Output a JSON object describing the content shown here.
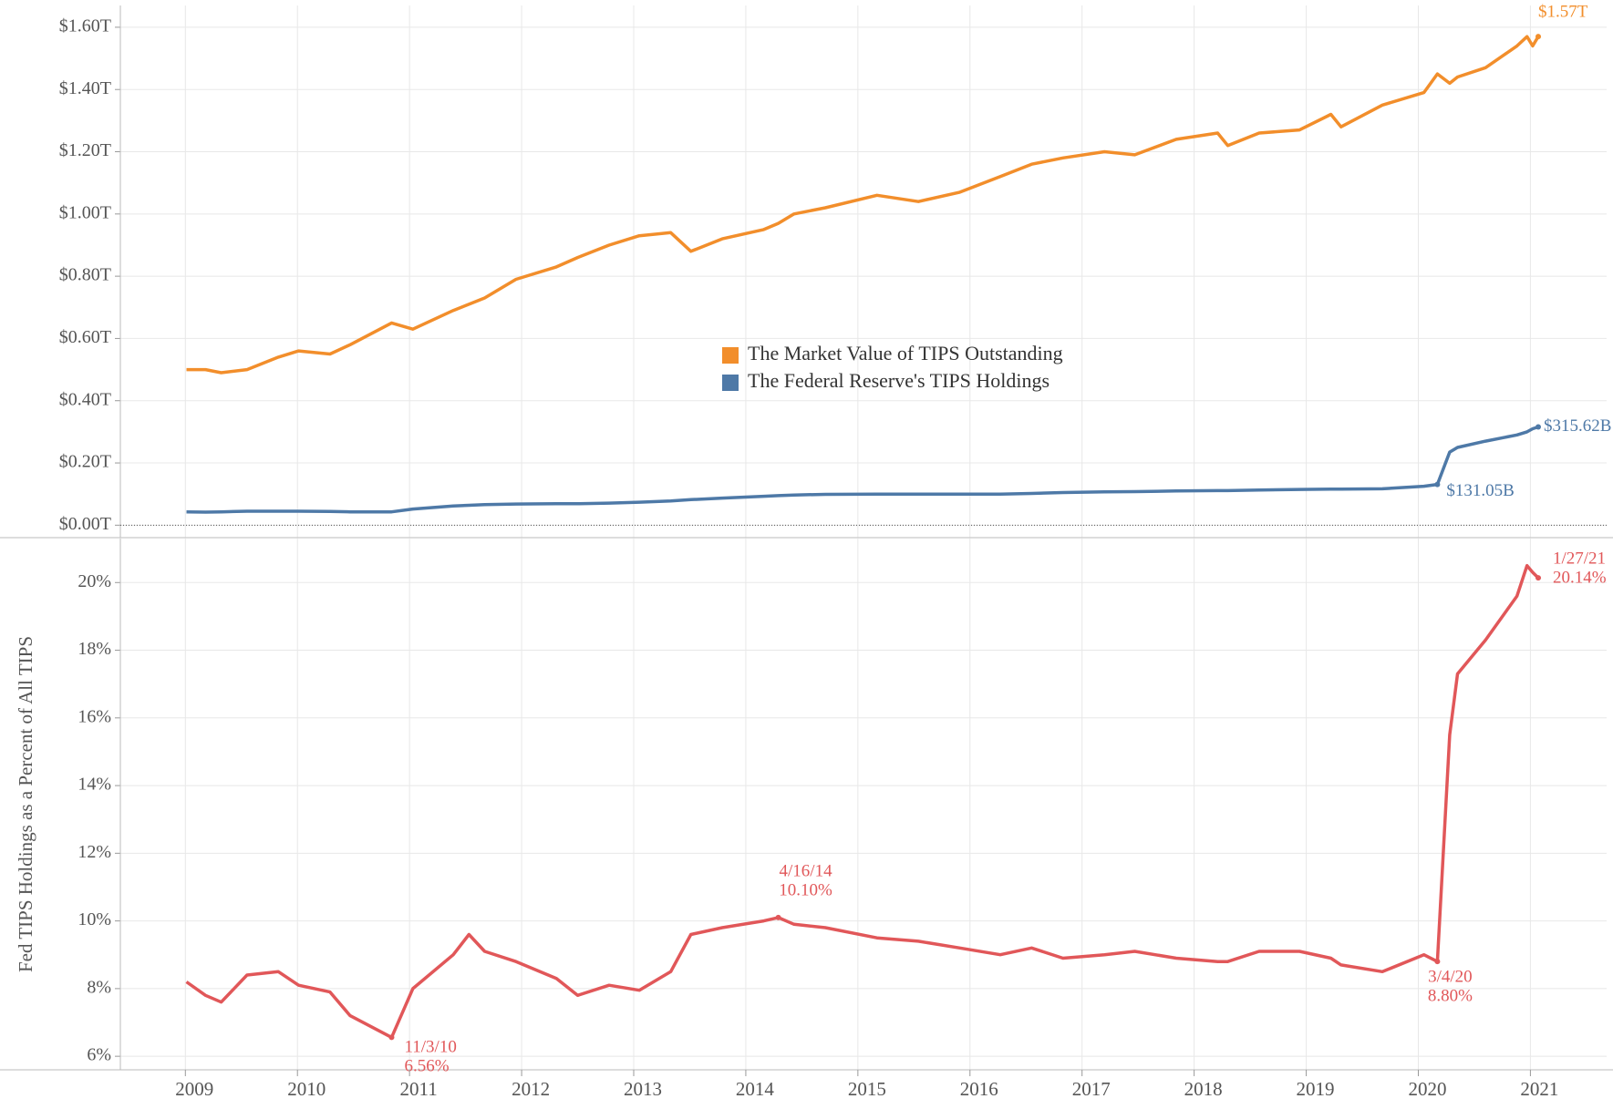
{
  "chart_data": {
    "type": "line",
    "x": [
      2009.01,
      2009.18,
      2009.32,
      2009.55,
      2009.83,
      2010.01,
      2010.29,
      2010.47,
      2010.84,
      2011.03,
      2011.39,
      2011.53,
      2011.67,
      2011.95,
      2012.31,
      2012.5,
      2012.78,
      2013.05,
      2013.33,
      2013.51,
      2013.79,
      2014.16,
      2014.29,
      2014.43,
      2014.71,
      2015.17,
      2015.54,
      2015.91,
      2016.27,
      2016.55,
      2016.83,
      2017.2,
      2017.47,
      2017.84,
      2018.21,
      2018.3,
      2018.58,
      2018.94,
      2019.22,
      2019.31,
      2019.68,
      2020.05,
      2020.17,
      2020.28,
      2020.35,
      2020.6,
      2020.88,
      2020.97,
      2021.02,
      2021.07
    ],
    "xlim": [
      2008.42,
      2021.68
    ],
    "xticks": [
      2009,
      2010,
      2011,
      2012,
      2013,
      2014,
      2015,
      2016,
      2017,
      2018,
      2019,
      2020,
      2021
    ],
    "grid": true,
    "panels": [
      {
        "ylim": [
          -0.04,
          1.67
        ],
        "yticks": [
          {
            "value": 0,
            "label": "$0.00T"
          },
          {
            "value": 0.2,
            "label": "$0.20T"
          },
          {
            "value": 0.4,
            "label": "$0.40T"
          },
          {
            "value": 0.6,
            "label": "$0.60T"
          },
          {
            "value": 0.8,
            "label": "$0.80T"
          },
          {
            "value": 1.0,
            "label": "$1.00T"
          },
          {
            "value": 1.2,
            "label": "$1.20T"
          },
          {
            "value": 1.4,
            "label": "$1.40T"
          },
          {
            "value": 1.6,
            "label": "$1.60T"
          }
        ],
        "legend": "center",
        "series": [
          {
            "name": "The Market Value of TIPS Outstanding",
            "color": "#f28e2b",
            "values": [
              0.5,
              0.5,
              0.49,
              0.5,
              0.54,
              0.56,
              0.55,
              0.58,
              0.65,
              0.63,
              0.69,
              0.71,
              0.73,
              0.79,
              0.83,
              0.86,
              0.9,
              0.93,
              0.94,
              0.88,
              0.92,
              0.95,
              0.97,
              1.0,
              1.02,
              1.06,
              1.04,
              1.07,
              1.12,
              1.16,
              1.18,
              1.2,
              1.19,
              1.24,
              1.26,
              1.22,
              1.26,
              1.27,
              1.32,
              1.28,
              1.35,
              1.39,
              1.45,
              1.42,
              1.44,
              1.47,
              1.54,
              1.57,
              1.54,
              1.57
            ]
          },
          {
            "name": "The Federal Reserve's TIPS Holdings",
            "color": "#4e79a7",
            "values": [
              0.043,
              0.042,
              0.043,
              0.045,
              0.045,
              0.045,
              0.044,
              0.043,
              0.043,
              0.052,
              0.062,
              0.064,
              0.066,
              0.068,
              0.069,
              0.069,
              0.071,
              0.074,
              0.078,
              0.082,
              0.087,
              0.093,
              0.095,
              0.097,
              0.099,
              0.1,
              0.1,
              0.1,
              0.1,
              0.102,
              0.105,
              0.107,
              0.108,
              0.11,
              0.111,
              0.111,
              0.113,
              0.115,
              0.116,
              0.116,
              0.117,
              0.125,
              0.13105,
              0.235,
              0.25,
              0.27,
              0.29,
              0.3,
              0.31,
              0.31562
            ]
          }
        ],
        "annotations": [
          {
            "x": 2021.07,
            "value": 1.57,
            "label": "$1.57T",
            "color": "#f28e2b"
          },
          {
            "x": 2021.07,
            "value": 0.31562,
            "label": "$315.62B",
            "color": "#4e79a7"
          },
          {
            "x": 2020.17,
            "value": 0.13105,
            "label": "$131.05B",
            "color": "#4e79a7"
          }
        ]
      },
      {
        "ylim": [
          5.6,
          21.3
        ],
        "yticks": [
          {
            "value": 6,
            "label": "6%"
          },
          {
            "value": 8,
            "label": "8%"
          },
          {
            "value": 10,
            "label": "10%"
          },
          {
            "value": 12,
            "label": "12%"
          },
          {
            "value": 14,
            "label": "14%"
          },
          {
            "value": 16,
            "label": "16%"
          },
          {
            "value": 18,
            "label": "18%"
          },
          {
            "value": 20,
            "label": "20%"
          }
        ],
        "y_label": "Fed TIPS Holdings as a Percent of All TIPS",
        "series": [
          {
            "color": "#e15759",
            "values": [
              8.2,
              7.8,
              7.6,
              8.4,
              8.5,
              8.1,
              7.9,
              7.2,
              6.56,
              8.0,
              9.0,
              9.6,
              9.1,
              8.8,
              8.3,
              7.8,
              8.1,
              7.95,
              8.5,
              9.6,
              9.8,
              10.0,
              10.1,
              9.9,
              9.8,
              9.5,
              9.4,
              9.2,
              9.0,
              9.2,
              8.9,
              9.0,
              9.1,
              8.9,
              8.8,
              8.8,
              9.1,
              9.1,
              8.9,
              8.7,
              8.5,
              9.0,
              8.8,
              15.5,
              17.3,
              18.3,
              19.6,
              20.5,
              20.3,
              20.14
            ]
          }
        ],
        "annotations": [
          {
            "x": 2010.84,
            "value": 6.56,
            "date": "11/3/10",
            "label": "6.56%",
            "color": "#e15759"
          },
          {
            "x": 2014.29,
            "value": 10.1,
            "date": "4/16/14",
            "label": "10.10%",
            "color": "#e15759"
          },
          {
            "x": 2020.17,
            "value": 8.8,
            "date": "3/4/20",
            "label": "8.80%",
            "color": "#e15759"
          },
          {
            "x": 2021.07,
            "value": 20.14,
            "date": "1/27/21",
            "label": "20.14%",
            "color": "#e15759"
          }
        ]
      }
    ]
  }
}
